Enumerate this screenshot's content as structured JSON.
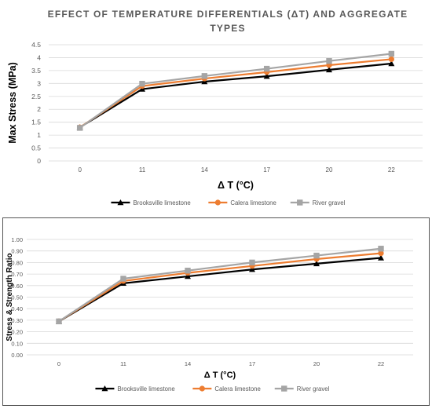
{
  "legend_labels": [
    "Brooksville limestone",
    "Calera limestone",
    "River gravel"
  ],
  "series_colors": [
    "#000000",
    "#ED7D31",
    "#A5A5A5"
  ],
  "series_markers": [
    "triangle",
    "circle",
    "square"
  ],
  "chart_data": [
    {
      "type": "line",
      "title": "EFFECT OF TEMPERATURE DIFFERENTIALS (ΔT) AND AGGREGATE TYPES",
      "title_lines": [
        "EFFECT OF TEMPERATURE DIFFERENTIALS (ΔT) AND AGGREGATE",
        "TYPES"
      ],
      "xlabel": "Δ T (°C)",
      "ylabel": "Max Stress (MPa)",
      "categories": [
        "0",
        "11",
        "14",
        "17",
        "20",
        "22"
      ],
      "ylim": [
        0,
        4.5
      ],
      "yticks": [
        "0",
        "0.5",
        "1",
        "1.5",
        "2",
        "2.5",
        "3",
        "3.5",
        "4",
        "4.5"
      ],
      "grid": true,
      "legend": "bottom",
      "series": [
        {
          "name": "Brooksville limestone",
          "values": [
            1.3,
            2.78,
            3.07,
            3.28,
            3.53,
            3.77
          ]
        },
        {
          "name": "Calera limestone",
          "values": [
            1.3,
            2.9,
            3.19,
            3.44,
            3.71,
            3.94
          ]
        },
        {
          "name": "River gravel",
          "values": [
            1.28,
            2.99,
            3.29,
            3.57,
            3.87,
            4.15
          ]
        }
      ]
    },
    {
      "type": "line",
      "title": "",
      "xlabel": "Δ T (°C)",
      "ylabel": "Stress & Strength Ratio",
      "categories": [
        "0",
        "11",
        "14",
        "17",
        "20",
        "22"
      ],
      "ylim": [
        0,
        1
      ],
      "yticks": [
        "0.00",
        "0.10",
        "0.20",
        "0.30",
        "0.40",
        "0.50",
        "0.60",
        "0.70",
        "0.80",
        "0.90",
        "1.00"
      ],
      "grid": true,
      "legend": "bottom",
      "series": [
        {
          "name": "Brooksville limestone",
          "values": [
            0.29,
            0.62,
            0.68,
            0.74,
            0.79,
            0.84
          ]
        },
        {
          "name": "Calera limestone",
          "values": [
            0.29,
            0.64,
            0.71,
            0.77,
            0.83,
            0.88
          ]
        },
        {
          "name": "River gravel",
          "values": [
            0.29,
            0.66,
            0.73,
            0.8,
            0.86,
            0.92
          ]
        }
      ]
    }
  ]
}
